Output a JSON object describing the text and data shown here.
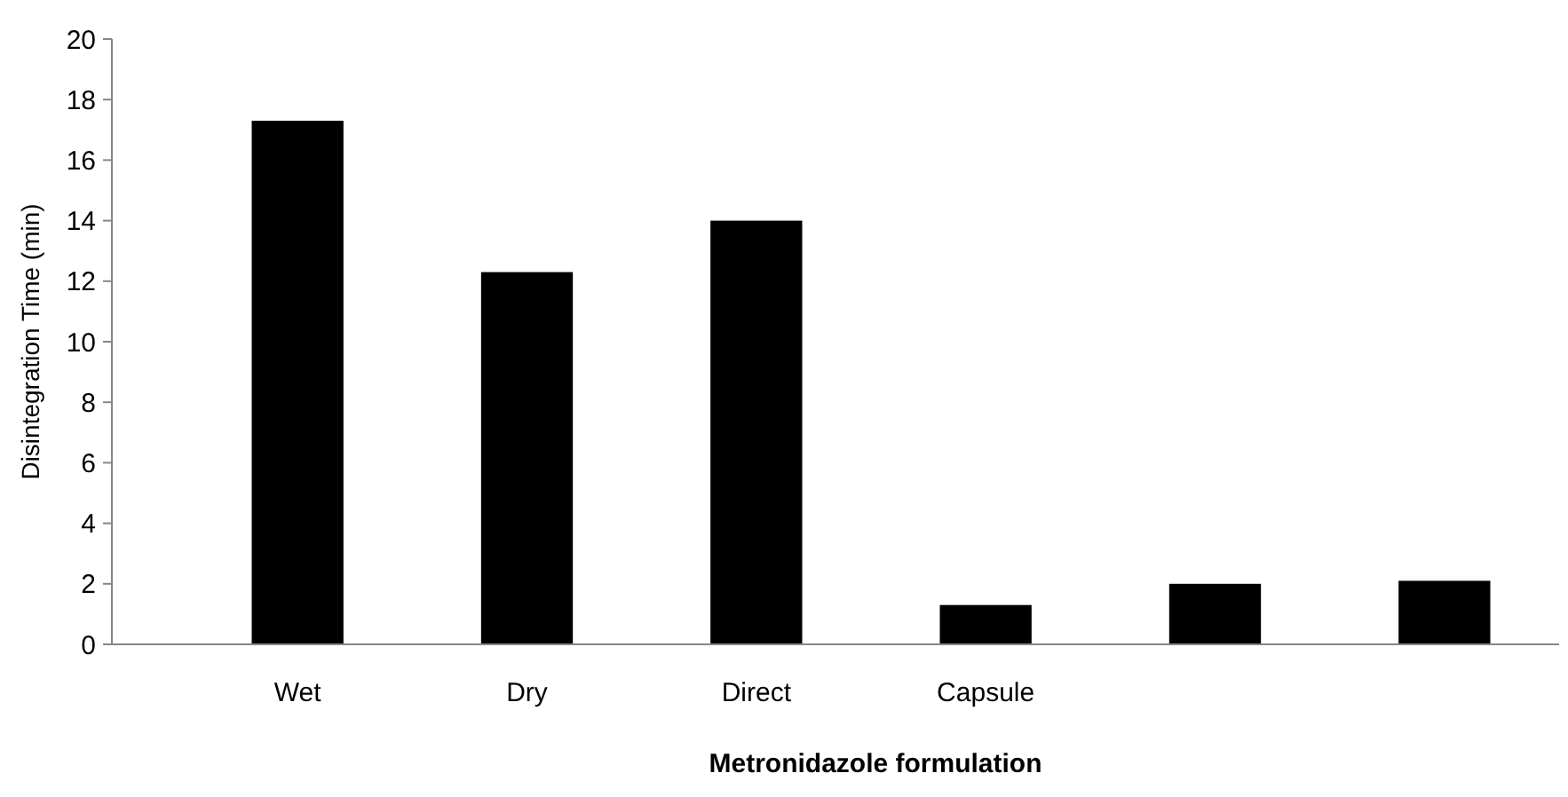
{
  "chart_data": {
    "type": "bar",
    "xlabel": "Metronidazole formulation",
    "ylabel": "Disintegration Time (min)",
    "categories": [
      "Wet",
      "Dry",
      "Direct",
      "Capsule",
      null,
      null
    ],
    "values": [
      17.3,
      12.3,
      14.0,
      1.3,
      2.0,
      2.1
    ],
    "color": "#000000",
    "ylim": [
      0,
      20
    ],
    "yticks": [
      0,
      2,
      4,
      6,
      8,
      10,
      12,
      14,
      16,
      18,
      20
    ],
    "grid": false
  }
}
